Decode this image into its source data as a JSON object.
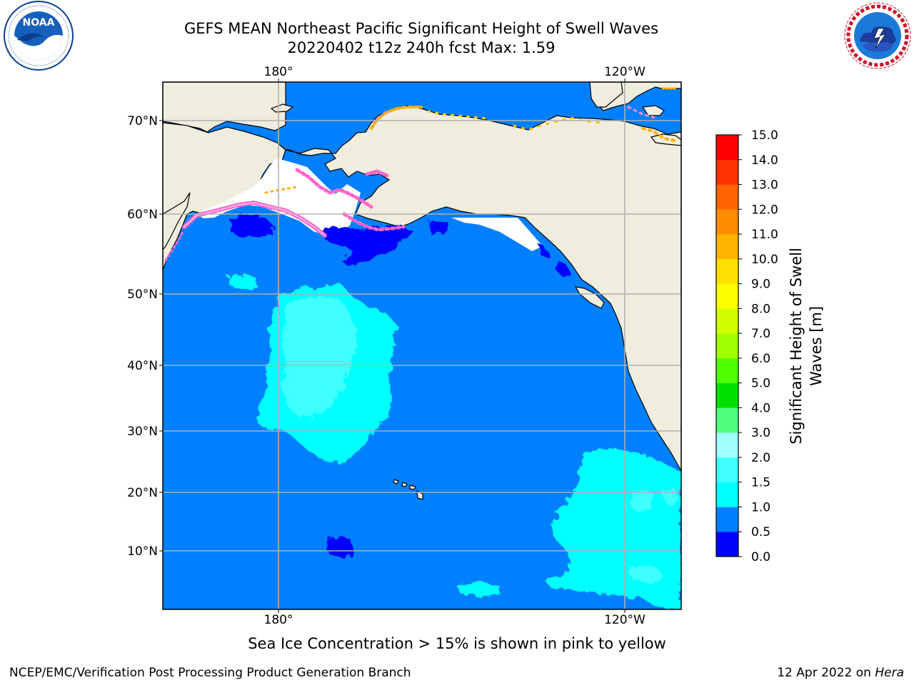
{
  "title": {
    "line1": "GEFS MEAN Northeast Pacific Significant Height of Swell Waves",
    "line2": "20220402 t12z 240h fcst   Max: 1.59"
  },
  "logos": {
    "left": {
      "name": "NOAA",
      "ring_text": "NATIONAL OCEANIC AND ATMOSPHERIC ADMINISTRATION · U.S. DEPARTMENT OF COMMERCE",
      "color": "#0a3d91"
    },
    "right": {
      "name": "NATIONAL WEATHER SERVICE",
      "color": "#d0102a"
    }
  },
  "map": {
    "lon_ticks": [
      "180°",
      "120°W"
    ],
    "lat_ticks": [
      "70°N",
      "60°N",
      "50°N",
      "40°N",
      "30°N",
      "20°N",
      "10°N"
    ],
    "colors": {
      "land": "#efedde",
      "ocean": "#0080ff",
      "grid": "#b0b0b0",
      "coast": "#000000"
    }
  },
  "colorbar": {
    "label": "Significant Height of Swell Waves [m]",
    "label_line1": "Significant Height of Swell",
    "label_line2": "Waves [m]",
    "levels": [
      "0.0",
      "0.5",
      "1.0",
      "1.5",
      "2.0",
      "3.0",
      "4.0",
      "5.0",
      "6.0",
      "7.0",
      "8.0",
      "9.0",
      "10.0",
      "11.0",
      "12.0",
      "13.0",
      "14.0",
      "15.0"
    ],
    "colors": [
      "#0000ff",
      "#0080ff",
      "#00ffff",
      "#40ffff",
      "#a0ffff",
      "#50ff80",
      "#00e000",
      "#50ff00",
      "#a0ff00",
      "#d0ff00",
      "#ffff00",
      "#ffe000",
      "#ffb400",
      "#ff8c00",
      "#ff6400",
      "#ff3200",
      "#ff0000"
    ]
  },
  "footer": {
    "note": "Sea Ice Concentration > 15% is shown in pink to yellow",
    "left": "NCEP/EMC/Verification Post Processing Product Generation Branch",
    "right_date": "12 Apr 2022 on",
    "right_host": "Hera"
  }
}
